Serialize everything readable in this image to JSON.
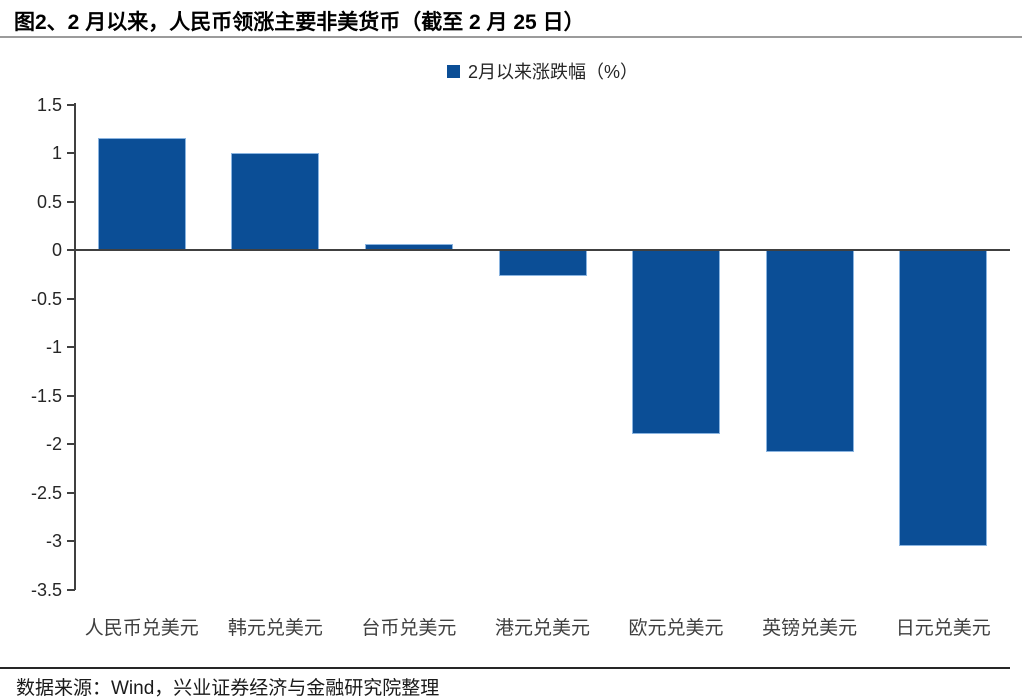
{
  "title": "图2、2 月以来，人民币领涨主要非美货币（截至 2 月 25 日）",
  "legend": {
    "label": "2月以来涨跌幅（%）"
  },
  "source": "数据来源：Wind，兴业证券经济与金融研究院整理",
  "colors": {
    "bar": "#0b4e96",
    "bar_border": "#8ab4e0",
    "axis": "#404040"
  },
  "chart_data": {
    "type": "bar",
    "categories": [
      "人民币兑美元",
      "韩元兑美元",
      "台币兑美元",
      "港元兑美元",
      "欧元兑美元",
      "英镑兑美元",
      "日元兑美元"
    ],
    "values": [
      1.15,
      1.0,
      0.06,
      -0.27,
      -1.9,
      -2.08,
      -3.05
    ],
    "series_name": "2月以来涨跌幅（%）",
    "title": "图2、2 月以来，人民币领涨主要非美货币（截至 2 月 25 日）",
    "xlabel": "",
    "ylabel": "",
    "ylim": [
      -3.5,
      1.5
    ],
    "ytick_step": 0.5,
    "grid": false,
    "legend_position": "top-center",
    "bar_color": "#0b4e96"
  }
}
